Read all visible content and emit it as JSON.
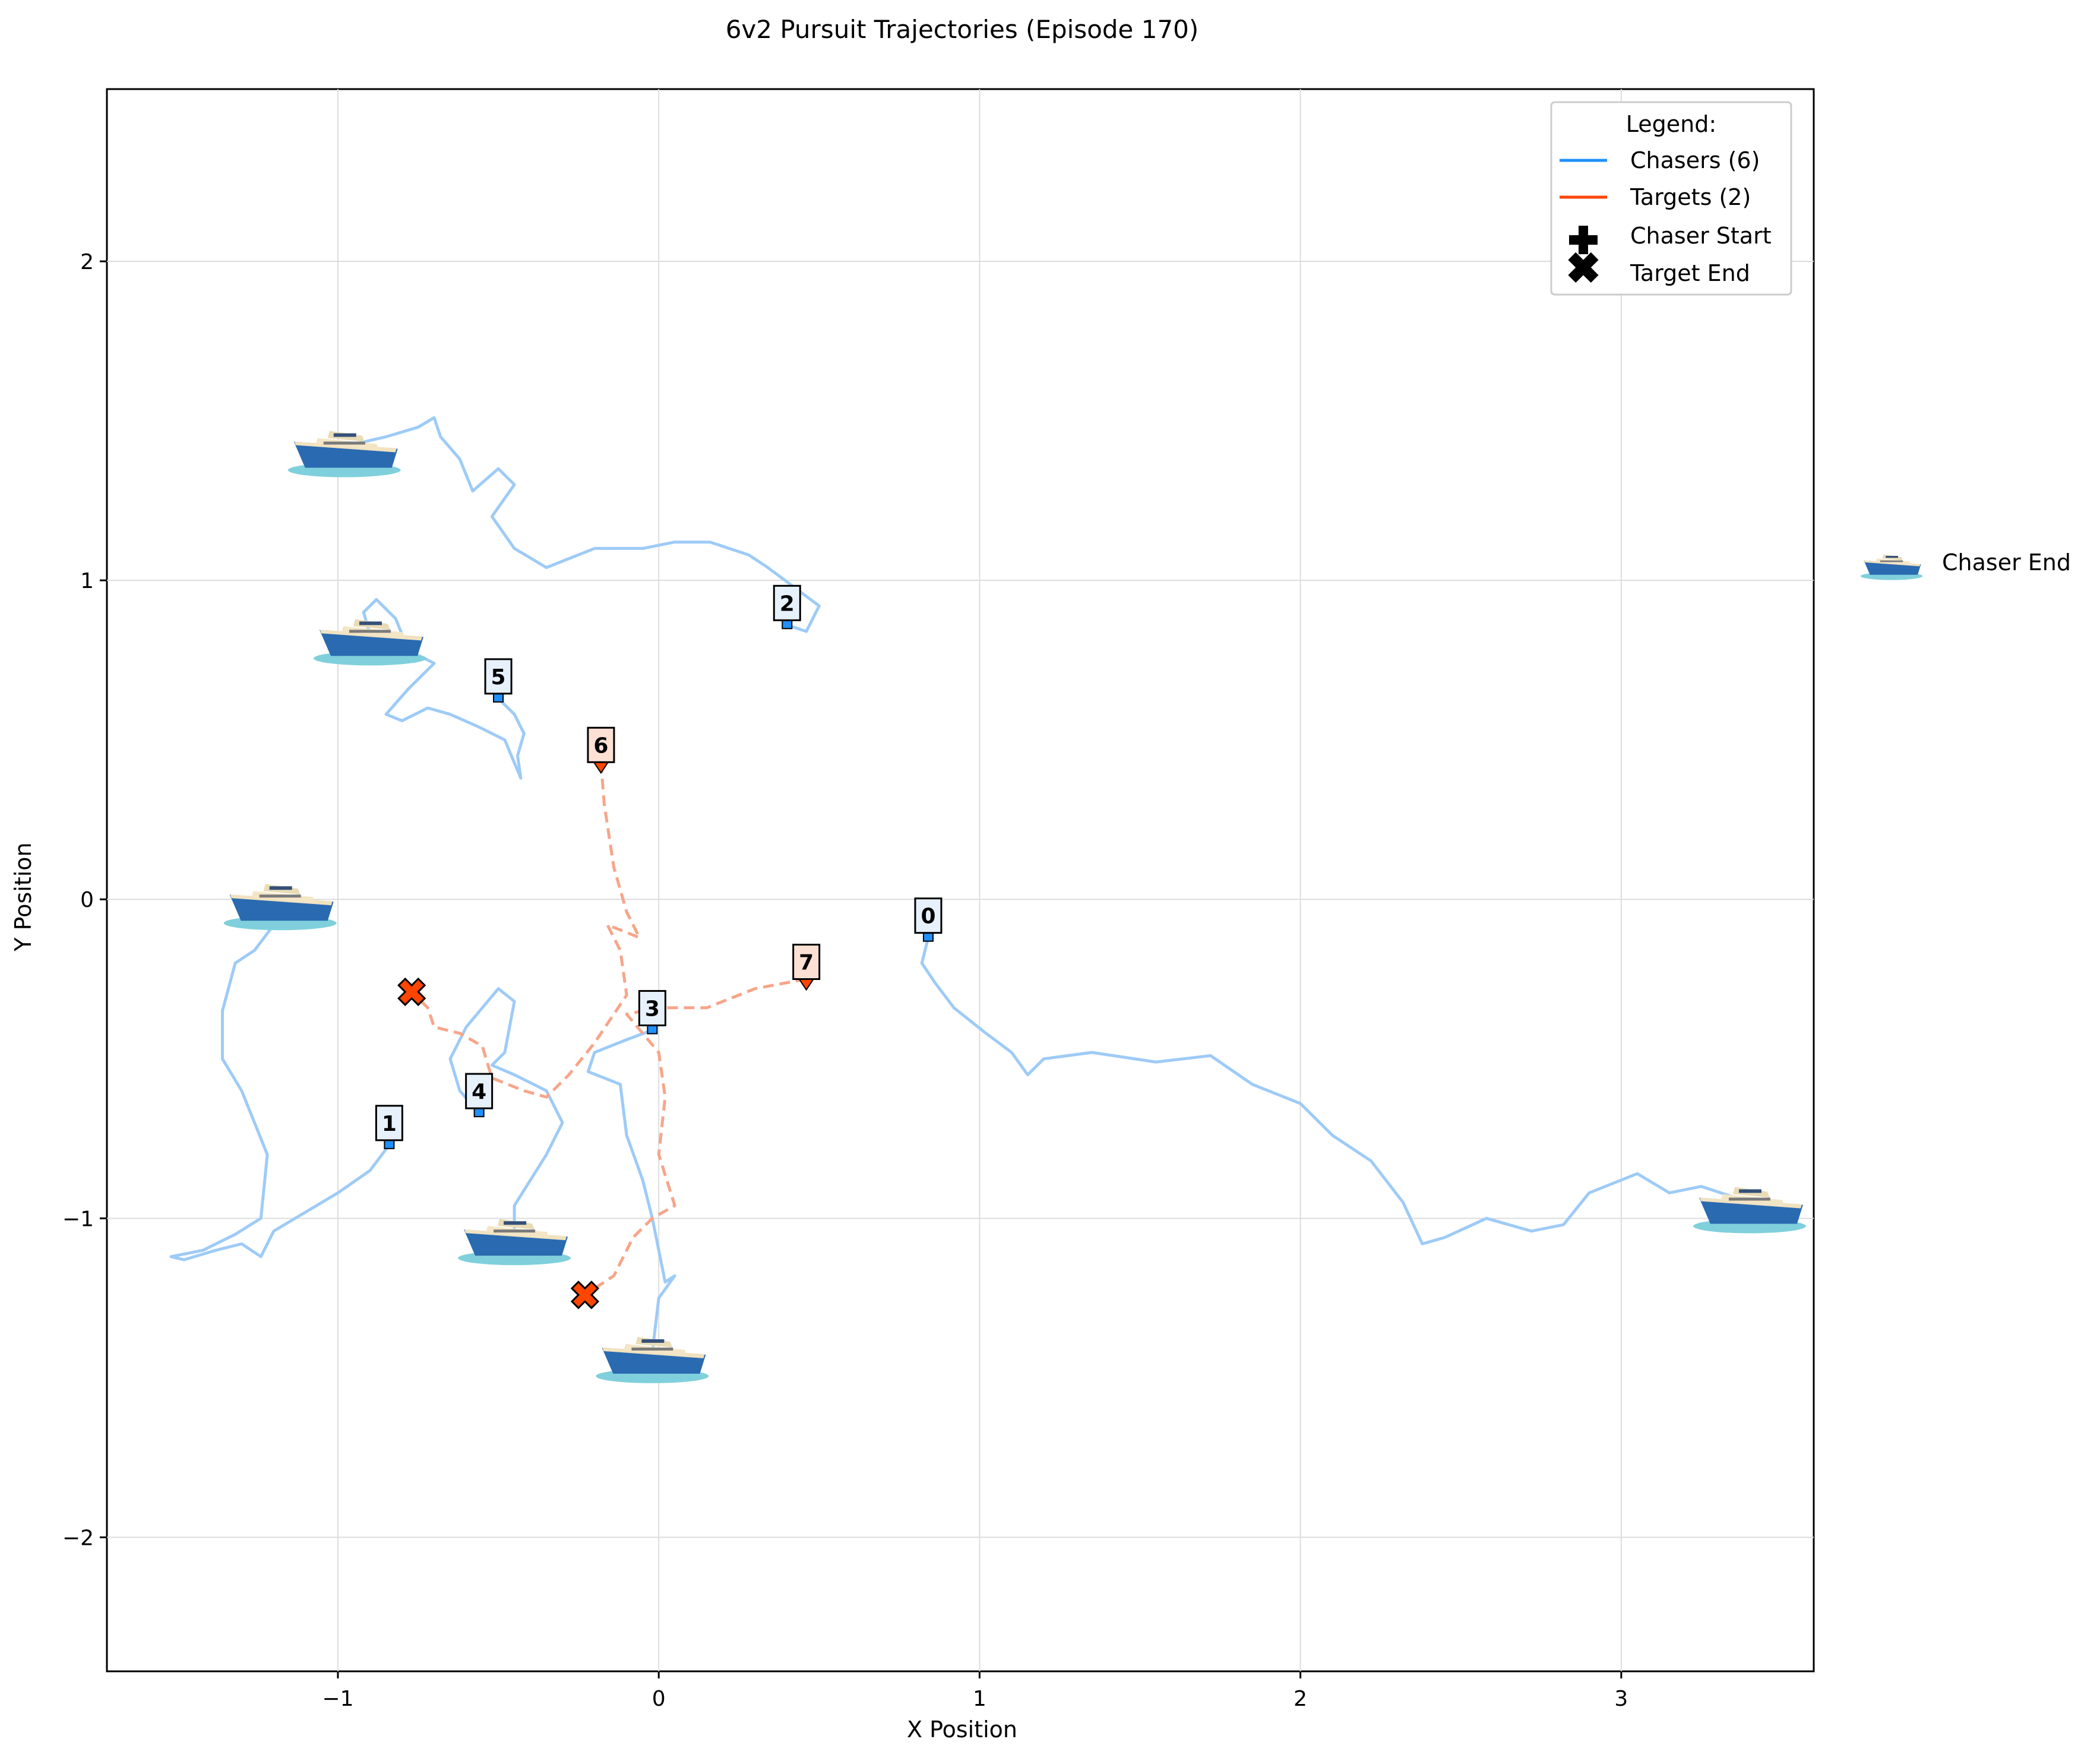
{
  "chart_data": {
    "type": "line",
    "title": "6v2 Pursuit Trajectories (Episode 170)",
    "xlabel": "X Position",
    "ylabel": "Y Position",
    "xlim": [
      -1.72,
      3.6
    ],
    "ylim": [
      -2.42,
      2.54
    ],
    "xticks": [
      -1,
      0,
      1,
      2,
      3
    ],
    "yticks": [
      -2,
      -1,
      0,
      1,
      2
    ],
    "tick_labels_x": [
      "−1",
      "0",
      "1",
      "2",
      "3"
    ],
    "tick_labels_y": [
      "−2",
      "−1",
      "0",
      "1",
      "2"
    ],
    "grid": true,
    "colors": {
      "chaser": "#1e90ff",
      "chaser_trail": "#9ecbf7",
      "target": "#ff4500",
      "target_trail": "#f7a58a",
      "hull": "#2a6ab0",
      "water": "#7fd0dc"
    },
    "legend": {
      "title": "Legend:",
      "placement": "top-right",
      "entries": [
        "Chasers (6)",
        "Targets (2)",
        "Chaser Start",
        "Target End"
      ]
    },
    "side_legend": {
      "label": "Chaser End"
    },
    "chasers": [
      {
        "id": "0",
        "start": [
          0.84,
          -0.12
        ],
        "end": [
          3.4,
          -0.95
        ],
        "path": [
          [
            0.84,
            -0.12
          ],
          [
            0.82,
            -0.2
          ],
          [
            0.86,
            -0.26
          ],
          [
            0.92,
            -0.34
          ],
          [
            1.02,
            -0.42
          ],
          [
            1.1,
            -0.48
          ],
          [
            1.15,
            -0.55
          ],
          [
            1.2,
            -0.5
          ],
          [
            1.35,
            -0.48
          ],
          [
            1.55,
            -0.51
          ],
          [
            1.72,
            -0.49
          ],
          [
            1.85,
            -0.58
          ],
          [
            2.0,
            -0.64
          ],
          [
            2.1,
            -0.74
          ],
          [
            2.22,
            -0.82
          ],
          [
            2.32,
            -0.95
          ],
          [
            2.38,
            -1.08
          ],
          [
            2.45,
            -1.06
          ],
          [
            2.58,
            -1.0
          ],
          [
            2.72,
            -1.04
          ],
          [
            2.82,
            -1.02
          ],
          [
            2.9,
            -0.92
          ],
          [
            3.05,
            -0.86
          ],
          [
            3.15,
            -0.92
          ],
          [
            3.25,
            -0.9
          ],
          [
            3.4,
            -0.95
          ]
        ]
      },
      {
        "id": "1",
        "start": [
          -0.84,
          -0.77
        ],
        "end": [
          -1.18,
          0.0
        ],
        "path": [
          [
            -0.84,
            -0.77
          ],
          [
            -0.9,
            -0.85
          ],
          [
            -1.0,
            -0.92
          ],
          [
            -1.1,
            -0.98
          ],
          [
            -1.2,
            -1.04
          ],
          [
            -1.24,
            -1.12
          ],
          [
            -1.3,
            -1.08
          ],
          [
            -1.38,
            -1.1
          ],
          [
            -1.48,
            -1.13
          ],
          [
            -1.52,
            -1.12
          ],
          [
            -1.42,
            -1.1
          ],
          [
            -1.32,
            -1.05
          ],
          [
            -1.24,
            -1.0
          ],
          [
            -1.22,
            -0.8
          ],
          [
            -1.3,
            -0.6
          ],
          [
            -1.36,
            -0.5
          ],
          [
            -1.36,
            -0.35
          ],
          [
            -1.32,
            -0.2
          ],
          [
            -1.26,
            -0.16
          ],
          [
            -1.2,
            -0.08
          ],
          [
            -1.18,
            0.0
          ]
        ]
      },
      {
        "id": "2",
        "start": [
          0.4,
          0.86
        ],
        "end": [
          -0.98,
          1.42
        ],
        "path": [
          [
            0.4,
            0.86
          ],
          [
            0.46,
            0.84
          ],
          [
            0.5,
            0.92
          ],
          [
            0.42,
            0.98
          ],
          [
            0.34,
            1.04
          ],
          [
            0.28,
            1.08
          ],
          [
            0.16,
            1.12
          ],
          [
            0.05,
            1.12
          ],
          [
            -0.05,
            1.1
          ],
          [
            -0.2,
            1.1
          ],
          [
            -0.35,
            1.04
          ],
          [
            -0.45,
            1.1
          ],
          [
            -0.52,
            1.2
          ],
          [
            -0.45,
            1.3
          ],
          [
            -0.5,
            1.35
          ],
          [
            -0.58,
            1.28
          ],
          [
            -0.62,
            1.38
          ],
          [
            -0.68,
            1.45
          ],
          [
            -0.7,
            1.51
          ],
          [
            -0.75,
            1.48
          ],
          [
            -0.85,
            1.45
          ],
          [
            -0.98,
            1.42
          ]
        ]
      },
      {
        "id": "3",
        "start": [
          -0.02,
          -0.41
        ],
        "end": [
          -0.02,
          -1.42
        ],
        "path": [
          [
            -0.02,
            -0.41
          ],
          [
            -0.1,
            -0.44
          ],
          [
            -0.2,
            -0.48
          ],
          [
            -0.22,
            -0.54
          ],
          [
            -0.12,
            -0.58
          ],
          [
            -0.1,
            -0.74
          ],
          [
            -0.05,
            -0.88
          ],
          [
            -0.02,
            -1.0
          ],
          [
            0.0,
            -1.1
          ],
          [
            0.02,
            -1.2
          ],
          [
            0.05,
            -1.18
          ],
          [
            0.0,
            -1.25
          ],
          [
            -0.02,
            -1.42
          ]
        ]
      },
      {
        "id": "4",
        "start": [
          -0.56,
          -0.67
        ],
        "end": [
          -0.45,
          -1.05
        ],
        "path": [
          [
            -0.56,
            -0.67
          ],
          [
            -0.62,
            -0.6
          ],
          [
            -0.65,
            -0.5
          ],
          [
            -0.6,
            -0.4
          ],
          [
            -0.55,
            -0.34
          ],
          [
            -0.5,
            -0.28
          ],
          [
            -0.45,
            -0.32
          ],
          [
            -0.48,
            -0.48
          ],
          [
            -0.52,
            -0.52
          ],
          [
            -0.45,
            -0.55
          ],
          [
            -0.35,
            -0.6
          ],
          [
            -0.3,
            -0.7
          ],
          [
            -0.35,
            -0.8
          ],
          [
            -0.4,
            -0.88
          ],
          [
            -0.45,
            -0.96
          ],
          [
            -0.45,
            -1.05
          ]
        ]
      },
      {
        "id": "5",
        "start": [
          -0.5,
          0.63
        ],
        "end": [
          -0.9,
          0.83
        ],
        "path": [
          [
            -0.5,
            0.63
          ],
          [
            -0.45,
            0.58
          ],
          [
            -0.42,
            0.52
          ],
          [
            -0.44,
            0.45
          ],
          [
            -0.43,
            0.38
          ],
          [
            -0.48,
            0.5
          ],
          [
            -0.56,
            0.54
          ],
          [
            -0.65,
            0.58
          ],
          [
            -0.72,
            0.6
          ],
          [
            -0.8,
            0.56
          ],
          [
            -0.85,
            0.58
          ],
          [
            -0.78,
            0.66
          ],
          [
            -0.7,
            0.74
          ],
          [
            -0.78,
            0.78
          ],
          [
            -0.82,
            0.88
          ],
          [
            -0.88,
            0.94
          ],
          [
            -0.92,
            0.9
          ],
          [
            -0.9,
            0.83
          ]
        ]
      }
    ],
    "targets": [
      {
        "id": "6",
        "start": [
          -0.18,
          0.43
        ],
        "end": [
          -0.77,
          -0.29
        ],
        "path": [
          [
            -0.18,
            0.43
          ],
          [
            -0.17,
            0.3
          ],
          [
            -0.14,
            0.1
          ],
          [
            -0.1,
            -0.04
          ],
          [
            -0.06,
            -0.12
          ],
          [
            -0.16,
            -0.08
          ],
          [
            -0.12,
            -0.16
          ],
          [
            -0.1,
            -0.3
          ],
          [
            -0.2,
            -0.45
          ],
          [
            -0.28,
            -0.55
          ],
          [
            -0.35,
            -0.62
          ],
          [
            -0.42,
            -0.6
          ],
          [
            -0.52,
            -0.56
          ],
          [
            -0.55,
            -0.46
          ],
          [
            -0.62,
            -0.42
          ],
          [
            -0.7,
            -0.4
          ],
          [
            -0.72,
            -0.34
          ],
          [
            -0.77,
            -0.29
          ]
        ]
      },
      {
        "id": "7",
        "start": [
          0.46,
          -0.25
        ],
        "end": [
          -0.23,
          -1.24
        ],
        "path": [
          [
            0.46,
            -0.25
          ],
          [
            0.3,
            -0.28
          ],
          [
            0.15,
            -0.34
          ],
          [
            0.0,
            -0.34
          ],
          [
            -0.1,
            -0.36
          ],
          [
            0.0,
            -0.48
          ],
          [
            0.02,
            -0.62
          ],
          [
            0.0,
            -0.8
          ],
          [
            0.05,
            -0.96
          ],
          [
            -0.02,
            -1.0
          ],
          [
            -0.08,
            -1.06
          ],
          [
            -0.14,
            -1.18
          ],
          [
            -0.2,
            -1.22
          ],
          [
            -0.23,
            -1.24
          ]
        ]
      }
    ]
  }
}
